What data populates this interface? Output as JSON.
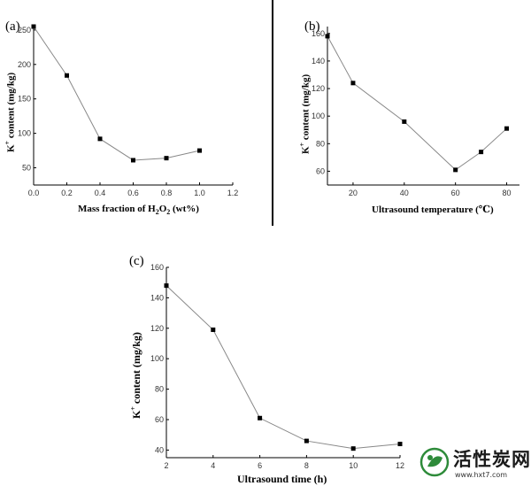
{
  "chart_data": [
    {
      "panel": "(a)",
      "type": "line",
      "xlabel_parts": [
        "Mass fraction of H",
        "2",
        "O",
        "2",
        " (wt%)"
      ],
      "ylabel_parts": [
        "K",
        "+",
        " content (mg/kg)"
      ],
      "xlim": [
        0.0,
        1.2
      ],
      "ylim": [
        25,
        255
      ],
      "xticks": [
        "0.0",
        "0.2",
        "0.4",
        "0.6",
        "0.8",
        "1.0",
        "1.2"
      ],
      "yticks": [
        "50",
        "100",
        "150",
        "200",
        "250"
      ],
      "x": [
        0.0,
        0.2,
        0.4,
        0.6,
        0.8,
        1.0
      ],
      "y": [
        255,
        184,
        92,
        61,
        64,
        75
      ]
    },
    {
      "panel": "(b)",
      "type": "line",
      "xlabel_parts": [
        "Ultrasound temperature (℃)"
      ],
      "ylabel_parts": [
        "K",
        "+",
        " content (mg/kg)"
      ],
      "xlim": [
        10,
        85
      ],
      "ylim": [
        50,
        165
      ],
      "xticks": [
        "20",
        "40",
        "60",
        "80"
      ],
      "yticks": [
        "60",
        "80",
        "100",
        "120",
        "140",
        "160"
      ],
      "x": [
        10,
        20,
        40,
        60,
        70,
        80
      ],
      "y": [
        158,
        124,
        96,
        61,
        74,
        91
      ]
    },
    {
      "panel": "(c)",
      "type": "line",
      "xlabel_parts": [
        "Ultrasound time (h)"
      ],
      "ylabel_parts": [
        "K",
        "+",
        " content (mg/kg)"
      ],
      "xlim": [
        2,
        12
      ],
      "ylim": [
        35,
        160
      ],
      "xticks": [
        "2",
        "4",
        "6",
        "8",
        "10",
        "12"
      ],
      "yticks": [
        "40",
        "60",
        "80",
        "100",
        "120",
        "140",
        "160"
      ],
      "x": [
        2,
        4,
        6,
        8,
        10,
        12
      ],
      "y": [
        148,
        119,
        61,
        46,
        41,
        44
      ]
    }
  ],
  "logo": {
    "text": "活性炭网",
    "url": "www.hxt7.com"
  },
  "colors": {
    "line": "#888888",
    "marker": "#000000",
    "logo_green": "#2e8b3a"
  }
}
